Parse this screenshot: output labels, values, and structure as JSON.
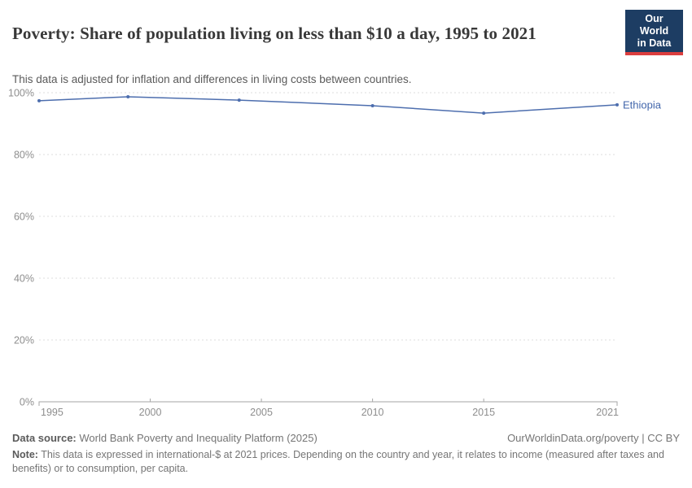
{
  "header": {
    "title": "Poverty: Share of population living on less than $10 a day, 1995 to 2021",
    "subtitle": "This data is adjusted for inflation and differences in living costs between countries.",
    "logo": {
      "line1": "Our World",
      "line2": "in Data"
    }
  },
  "chart_data": {
    "type": "line",
    "title": "Poverty: Share of population living on less than $10 a day, 1995 to 2021",
    "xlabel": "",
    "ylabel": "",
    "xlim": [
      1995,
      2021
    ],
    "ylim": [
      0,
      100
    ],
    "x_ticks": [
      1995,
      2000,
      2005,
      2010,
      2015,
      2021
    ],
    "y_ticks": [
      0,
      20,
      40,
      60,
      80,
      100
    ],
    "y_tick_suffix": "%",
    "grid": "horizontal-dashed",
    "legend_position": "end-of-line-label",
    "series": [
      {
        "name": "Ethiopia",
        "x": [
          1995,
          1999,
          2004,
          2010,
          2015,
          2021
        ],
        "values": [
          97.4,
          98.7,
          97.6,
          95.8,
          93.4,
          96.1
        ]
      }
    ]
  },
  "footer": {
    "source_label": "Data source:",
    "source_text": "World Bank Poverty and Inequality Platform (2025)",
    "credit": "OurWorldinData.org/poverty | CC BY",
    "note_label": "Note:",
    "note_text": "This data is expressed in international-$ at 2021 prices. Depending on the country and year, it relates to income (measured after taxes and benefits) or to consumption, per capita."
  },
  "colors": {
    "accent_line": "#4d6eae",
    "entity_label": "#4266ab",
    "logo_bg": "#1d3d63",
    "logo_bar": "#dc3e3e",
    "grid": "#dcdcdc",
    "axis": "#a6a6a6",
    "tick_text": "#8e8e8e",
    "title_text": "#383838",
    "subtitle_text": "#5a5a5a"
  }
}
